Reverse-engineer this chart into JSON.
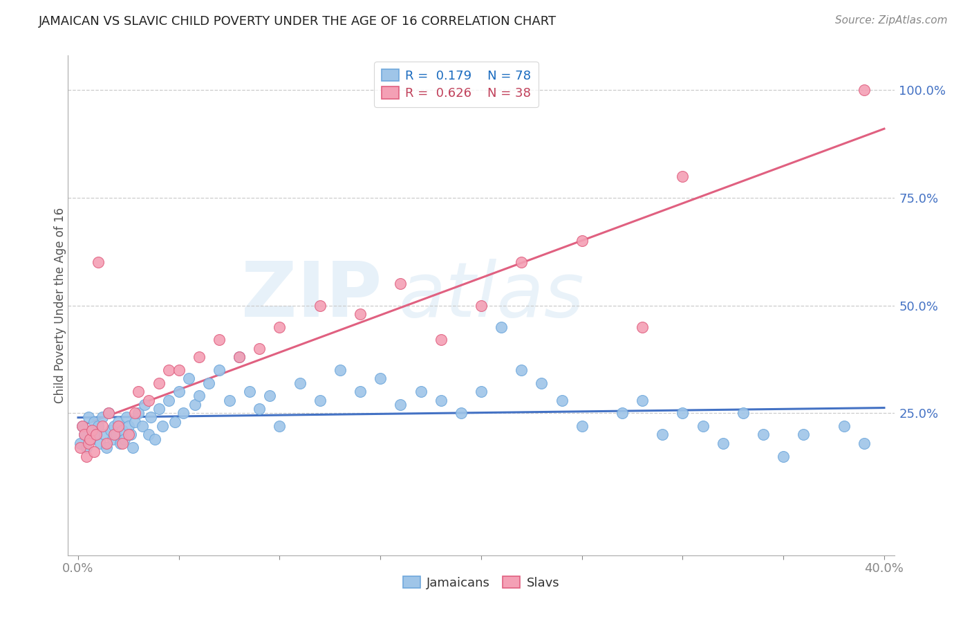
{
  "title": "JAMAICAN VS SLAVIC CHILD POVERTY UNDER THE AGE OF 16 CORRELATION CHART",
  "source": "Source: ZipAtlas.com",
  "ylabel": "Child Poverty Under the Age of 16",
  "xlim": [
    -0.005,
    0.405
  ],
  "ylim": [
    -0.08,
    1.08
  ],
  "xticks": [
    0.0,
    0.05,
    0.1,
    0.15,
    0.2,
    0.25,
    0.3,
    0.35,
    0.4
  ],
  "xticklabels": [
    "0.0%",
    "",
    "",
    "",
    "",
    "",
    "",
    "",
    "40.0%"
  ],
  "yticks_right": [
    0.25,
    0.5,
    0.75,
    1.0
  ],
  "ytick_right_labels": [
    "25.0%",
    "50.0%",
    "75.0%",
    "100.0%"
  ],
  "jamaican_color": "#9fc5e8",
  "slav_color": "#f4a0b5",
  "jamaican_edge_color": "#6fa8dc",
  "slav_edge_color": "#e06080",
  "jamaican_line_color": "#4472c4",
  "slav_line_color": "#e06080",
  "R_jamaican": 0.179,
  "N_jamaican": 78,
  "R_slav": 0.626,
  "N_slav": 38,
  "background_color": "#ffffff",
  "jamaican_x": [
    0.001,
    0.002,
    0.003,
    0.004,
    0.005,
    0.006,
    0.007,
    0.008,
    0.009,
    0.01,
    0.011,
    0.012,
    0.013,
    0.014,
    0.015,
    0.016,
    0.017,
    0.018,
    0.019,
    0.02,
    0.021,
    0.022,
    0.023,
    0.024,
    0.025,
    0.026,
    0.027,
    0.028,
    0.03,
    0.032,
    0.033,
    0.035,
    0.036,
    0.038,
    0.04,
    0.042,
    0.045,
    0.048,
    0.05,
    0.052,
    0.055,
    0.058,
    0.06,
    0.065,
    0.07,
    0.075,
    0.08,
    0.085,
    0.09,
    0.095,
    0.1,
    0.11,
    0.12,
    0.13,
    0.14,
    0.15,
    0.16,
    0.17,
    0.18,
    0.19,
    0.2,
    0.21,
    0.22,
    0.23,
    0.24,
    0.25,
    0.27,
    0.28,
    0.29,
    0.3,
    0.31,
    0.32,
    0.33,
    0.34,
    0.35,
    0.36,
    0.38,
    0.39
  ],
  "jamaican_y": [
    0.18,
    0.22,
    0.2,
    0.17,
    0.24,
    0.19,
    0.21,
    0.23,
    0.2,
    0.22,
    0.18,
    0.24,
    0.2,
    0.17,
    0.25,
    0.21,
    0.19,
    0.22,
    0.2,
    0.23,
    0.18,
    0.21,
    0.19,
    0.24,
    0.22,
    0.2,
    0.17,
    0.23,
    0.25,
    0.22,
    0.27,
    0.2,
    0.24,
    0.19,
    0.26,
    0.22,
    0.28,
    0.23,
    0.3,
    0.25,
    0.33,
    0.27,
    0.29,
    0.32,
    0.35,
    0.28,
    0.38,
    0.3,
    0.26,
    0.29,
    0.22,
    0.32,
    0.28,
    0.35,
    0.3,
    0.33,
    0.27,
    0.3,
    0.28,
    0.25,
    0.3,
    0.45,
    0.35,
    0.32,
    0.28,
    0.22,
    0.25,
    0.28,
    0.2,
    0.25,
    0.22,
    0.18,
    0.25,
    0.2,
    0.15,
    0.2,
    0.22,
    0.18
  ],
  "slav_x": [
    0.001,
    0.002,
    0.003,
    0.004,
    0.005,
    0.006,
    0.007,
    0.008,
    0.009,
    0.01,
    0.012,
    0.014,
    0.015,
    0.018,
    0.02,
    0.022,
    0.025,
    0.028,
    0.03,
    0.035,
    0.04,
    0.045,
    0.05,
    0.06,
    0.07,
    0.08,
    0.09,
    0.1,
    0.12,
    0.14,
    0.16,
    0.18,
    0.2,
    0.22,
    0.25,
    0.28,
    0.3,
    0.39
  ],
  "slav_y": [
    0.17,
    0.22,
    0.2,
    0.15,
    0.18,
    0.19,
    0.21,
    0.16,
    0.2,
    0.6,
    0.22,
    0.18,
    0.25,
    0.2,
    0.22,
    0.18,
    0.2,
    0.25,
    0.3,
    0.28,
    0.32,
    0.35,
    0.35,
    0.38,
    0.42,
    0.38,
    0.4,
    0.45,
    0.5,
    0.48,
    0.55,
    0.42,
    0.5,
    0.6,
    0.65,
    0.45,
    0.8,
    1.0
  ]
}
